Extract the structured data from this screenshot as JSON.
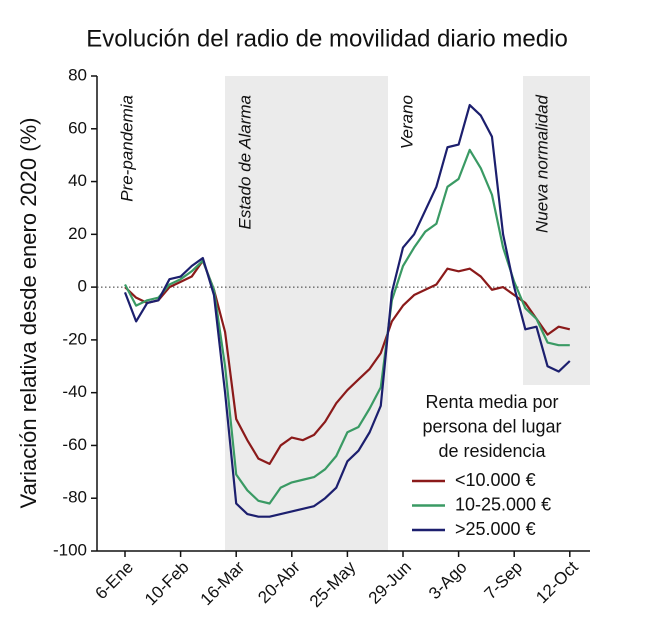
{
  "chart_data": {
    "type": "line",
    "title": "Evolución del radio de movilidad diario medio",
    "y_label": "Variación relativa desde enero 2020 (%)",
    "categories": [
      "6-Ene",
      null,
      null,
      null,
      null,
      "10-Feb",
      null,
      null,
      null,
      null,
      "16-Mar",
      null,
      null,
      null,
      null,
      "20-Abr",
      null,
      null,
      null,
      null,
      "25-May",
      null,
      null,
      null,
      null,
      "29-Jun",
      null,
      null,
      null,
      null,
      "3-Ago",
      null,
      null,
      null,
      null,
      "7-Sep",
      null,
      null,
      null,
      null,
      "12-Oct"
    ],
    "series": [
      {
        "name": "<10.000 €",
        "color": "#8b1a1a",
        "values": [
          0,
          -4,
          -6,
          -5,
          0,
          2,
          4,
          10,
          -1,
          -17,
          -50,
          -58,
          -65,
          -67,
          -60,
          -57,
          -58,
          -56,
          -51,
          -44,
          -39,
          -35,
          -31,
          -25,
          -13,
          -7,
          -3,
          -1,
          1,
          7,
          6,
          7,
          4,
          -1,
          0,
          -3,
          -6,
          -12,
          -18,
          -15,
          -16
        ]
      },
      {
        "name": "10-25.000 €",
        "color": "#3a9a64",
        "values": [
          1,
          -7,
          -5,
          -4,
          1,
          3,
          6,
          10,
          -1,
          -30,
          -71,
          -77,
          -81,
          -82,
          -76,
          -74,
          -73,
          -72,
          -69,
          -64,
          -55,
          -53,
          -46,
          -38,
          -5,
          8,
          15,
          21,
          24,
          38,
          41,
          52,
          45,
          35,
          15,
          2,
          -8,
          -12,
          -21,
          -22,
          -22
        ]
      },
      {
        "name": ">25.000 €",
        "color": "#1c1f6e",
        "values": [
          -2,
          -13,
          -6,
          -5,
          3,
          4,
          8,
          11,
          -3,
          -40,
          -82,
          -86,
          -87,
          -87,
          -86,
          -85,
          -84,
          -83,
          -80,
          -76,
          -66,
          -62,
          -55,
          -45,
          -2,
          15,
          20,
          29,
          38,
          53,
          54,
          69,
          65,
          57,
          20,
          0,
          -16,
          -15,
          -30,
          -32,
          -28
        ]
      }
    ],
    "ylim": [
      -100,
      80
    ],
    "yticks": [
      -100,
      -80,
      -60,
      -40,
      -20,
      0,
      20,
      40,
      60,
      80
    ],
    "reference_line": 0,
    "annotations": [
      "Pre-pandemia",
      "Estado de Alarma",
      "Verano",
      "Nueva normalidad"
    ],
    "legend_title": [
      "Renta media por",
      "persona del lugar",
      "de residencia"
    ]
  }
}
